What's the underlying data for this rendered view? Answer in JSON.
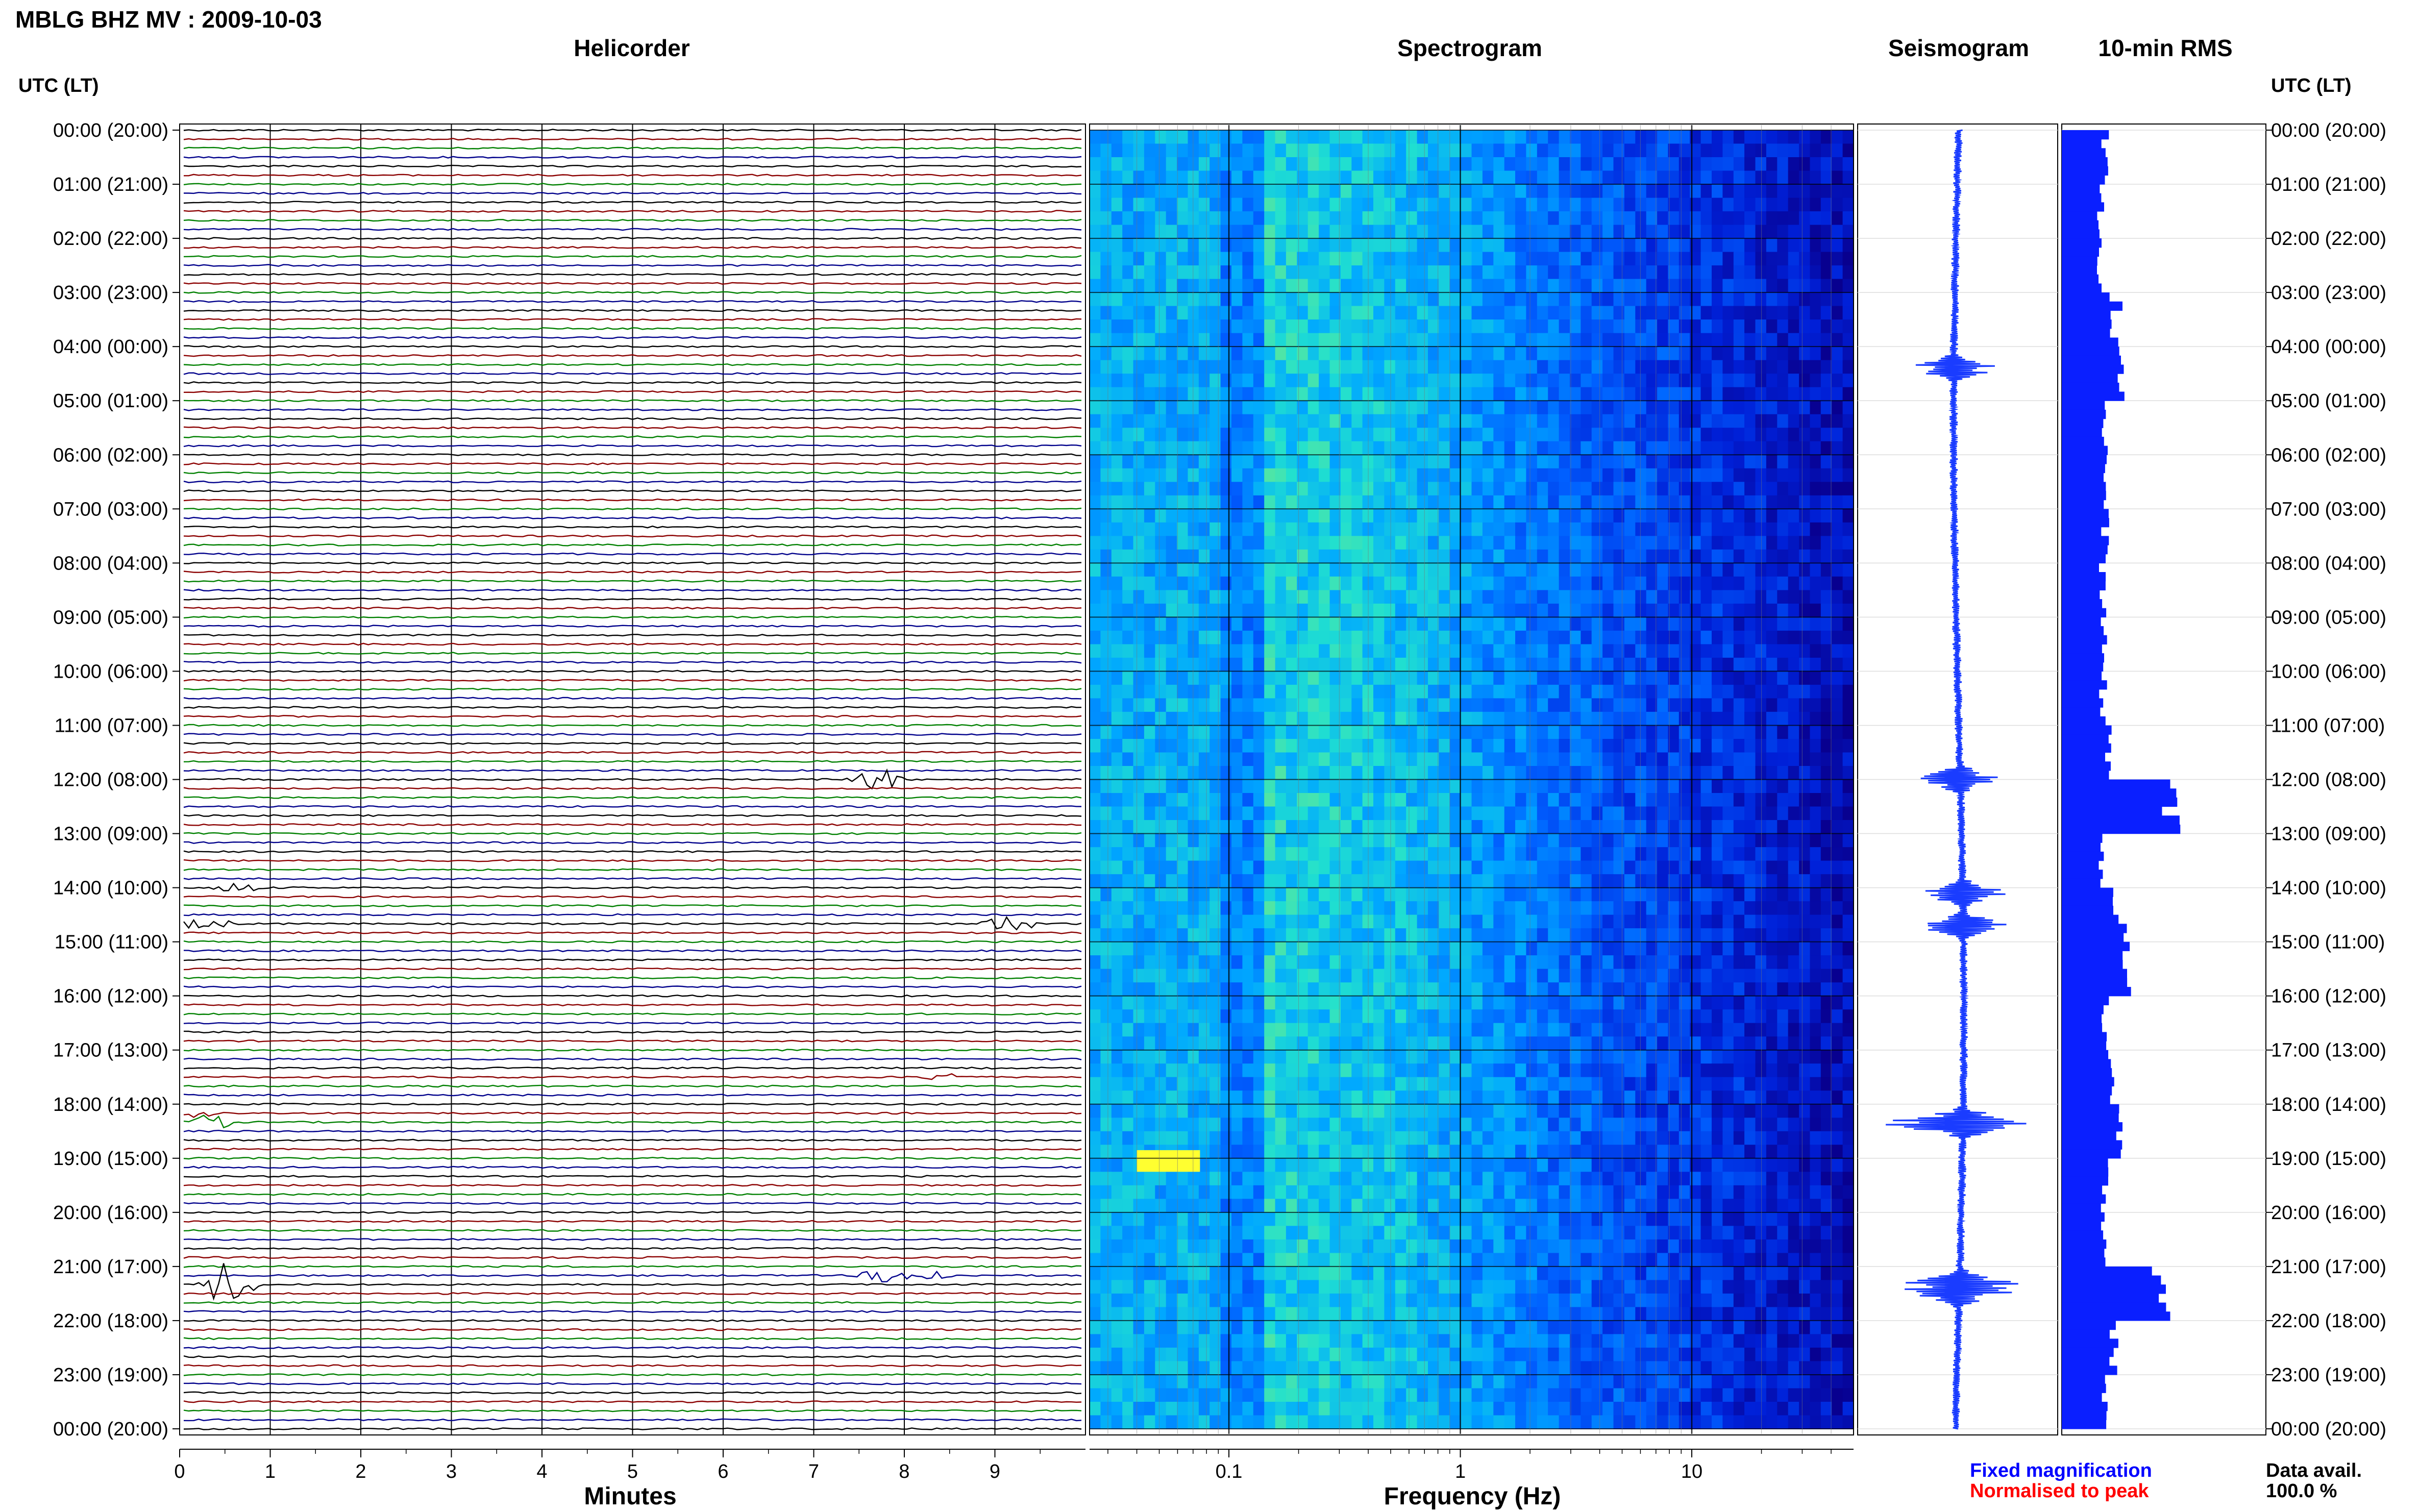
{
  "header": {
    "station_title": "MBLG BHZ MV : 2009-10-03",
    "utc_lt_label": "UTC (LT)",
    "panel_titles": {
      "helicorder": "Helicorder",
      "spectrogram": "Spectrogram",
      "seismogram": "Seismogram",
      "rms": "10-min RMS"
    }
  },
  "footer": {
    "legend_fixed": "Fixed magnification",
    "legend_normalised": "Normalised to peak",
    "data_avail_label": "Data avail.",
    "data_avail_value": "100.0 %"
  },
  "colors": {
    "legend_fixed": "#0000ff",
    "legend_normalised": "#ff0000",
    "trace_cycle": [
      "#000000",
      "#8b0000",
      "#008000",
      "#00008b"
    ],
    "seismogram": "#1a3cff",
    "rms_bar": "#0a1fff"
  },
  "chart_data": [
    {
      "type": "line",
      "name": "helicorder",
      "title": "Helicorder",
      "xlabel": "Minutes",
      "x_ticks": [
        "0",
        "1",
        "2",
        "3",
        "4",
        "5",
        "6",
        "7",
        "8",
        "9"
      ],
      "xlim": [
        0,
        10
      ],
      "y_hour_labels": [
        "00:00 (20:00)",
        "01:00 (21:00)",
        "02:00 (22:00)",
        "03:00 (23:00)",
        "04:00 (00:00)",
        "05:00 (01:00)",
        "06:00 (02:00)",
        "07:00 (03:00)",
        "08:00 (04:00)",
        "09:00 (05:00)",
        "10:00 (06:00)",
        "11:00 (07:00)",
        "12:00 (08:00)",
        "13:00 (09:00)",
        "14:00 (10:00)",
        "15:00 (11:00)",
        "16:00 (12:00)",
        "17:00 (13:00)",
        "18:00 (14:00)",
        "19:00 (15:00)",
        "20:00 (16:00)",
        "21:00 (17:00)",
        "22:00 (18:00)",
        "23:00 (19:00)",
        "00:00 (20:00)"
      ],
      "traces_per_hour": 6,
      "events": [
        {
          "hour": 12.0,
          "minute": 7.7,
          "amp": 3.2,
          "color": "#008000"
        },
        {
          "hour": 21.3,
          "minute": 0.5,
          "amp": 6.0,
          "color": "#000000"
        },
        {
          "hour": 21.2,
          "minute": 7.8,
          "amp": 1.6,
          "color": "#8b0000"
        },
        {
          "hour": 21.2,
          "minute": 8.3,
          "amp": 1.5,
          "color": "#8b0000"
        },
        {
          "hour": 14.6,
          "minute": 0.25,
          "amp": 1.8,
          "color": "#000000"
        },
        {
          "hour": 14.6,
          "minute": 9.2,
          "amp": 2.5,
          "color": "#000000"
        },
        {
          "hour": 18.4,
          "minute": 0.3,
          "amp": 1.8,
          "color": "#008000"
        },
        {
          "hour": 18.2,
          "minute": 0.1,
          "amp": 1.6,
          "color": "#8b0000"
        },
        {
          "hour": 14.0,
          "minute": 0.6,
          "amp": 1.2,
          "color": "#000000"
        },
        {
          "hour": 17.5,
          "minute": 8.5,
          "amp": 1.0,
          "color": "#000000"
        }
      ]
    },
    {
      "type": "heatmap",
      "name": "spectrogram",
      "title": "Spectrogram",
      "xlabel": "Frequency (Hz)",
      "x_scale": "log",
      "xlim": [
        0.025,
        50
      ],
      "x_ticks": [
        "0.1",
        "1",
        "10"
      ],
      "x_tick_values": [
        0.1,
        1,
        10
      ],
      "color_scale": [
        "#08008f",
        "#0020d8",
        "#0060ff",
        "#00a8ff",
        "#20e0d0",
        "#b0f050",
        "#ffff30"
      ]
    },
    {
      "type": "line",
      "name": "seismogram",
      "title": "Seismogram",
      "spikes_hour": [
        4.4,
        12.0,
        14.1,
        14.7,
        18.3,
        18.4,
        21.3,
        21.5
      ]
    },
    {
      "type": "bar",
      "name": "10-min RMS",
      "title": "10-min RMS",
      "hour_values": [
        1.0,
        0.9,
        0.9,
        1.2,
        1.4,
        1.0,
        1.0,
        1.0,
        0.95,
        0.95,
        0.95,
        1.1,
        2.5,
        0.9,
        1.3,
        1.5,
        1.0,
        1.1,
        1.3,
        1.0,
        1.0,
        2.3,
        1.2,
        1.0
      ],
      "spikes": [
        {
          "hour": 3.2,
          "value": 1.4
        },
        {
          "hour": 4.4,
          "value": 1.3
        },
        {
          "hour": 12.0,
          "value": 2.5
        },
        {
          "hour": 14.7,
          "value": 1.5
        },
        {
          "hour": 18.4,
          "value": 1.4
        },
        {
          "hour": 21.3,
          "value": 2.4
        },
        {
          "hour": 21.5,
          "value": 2.0
        }
      ]
    }
  ]
}
